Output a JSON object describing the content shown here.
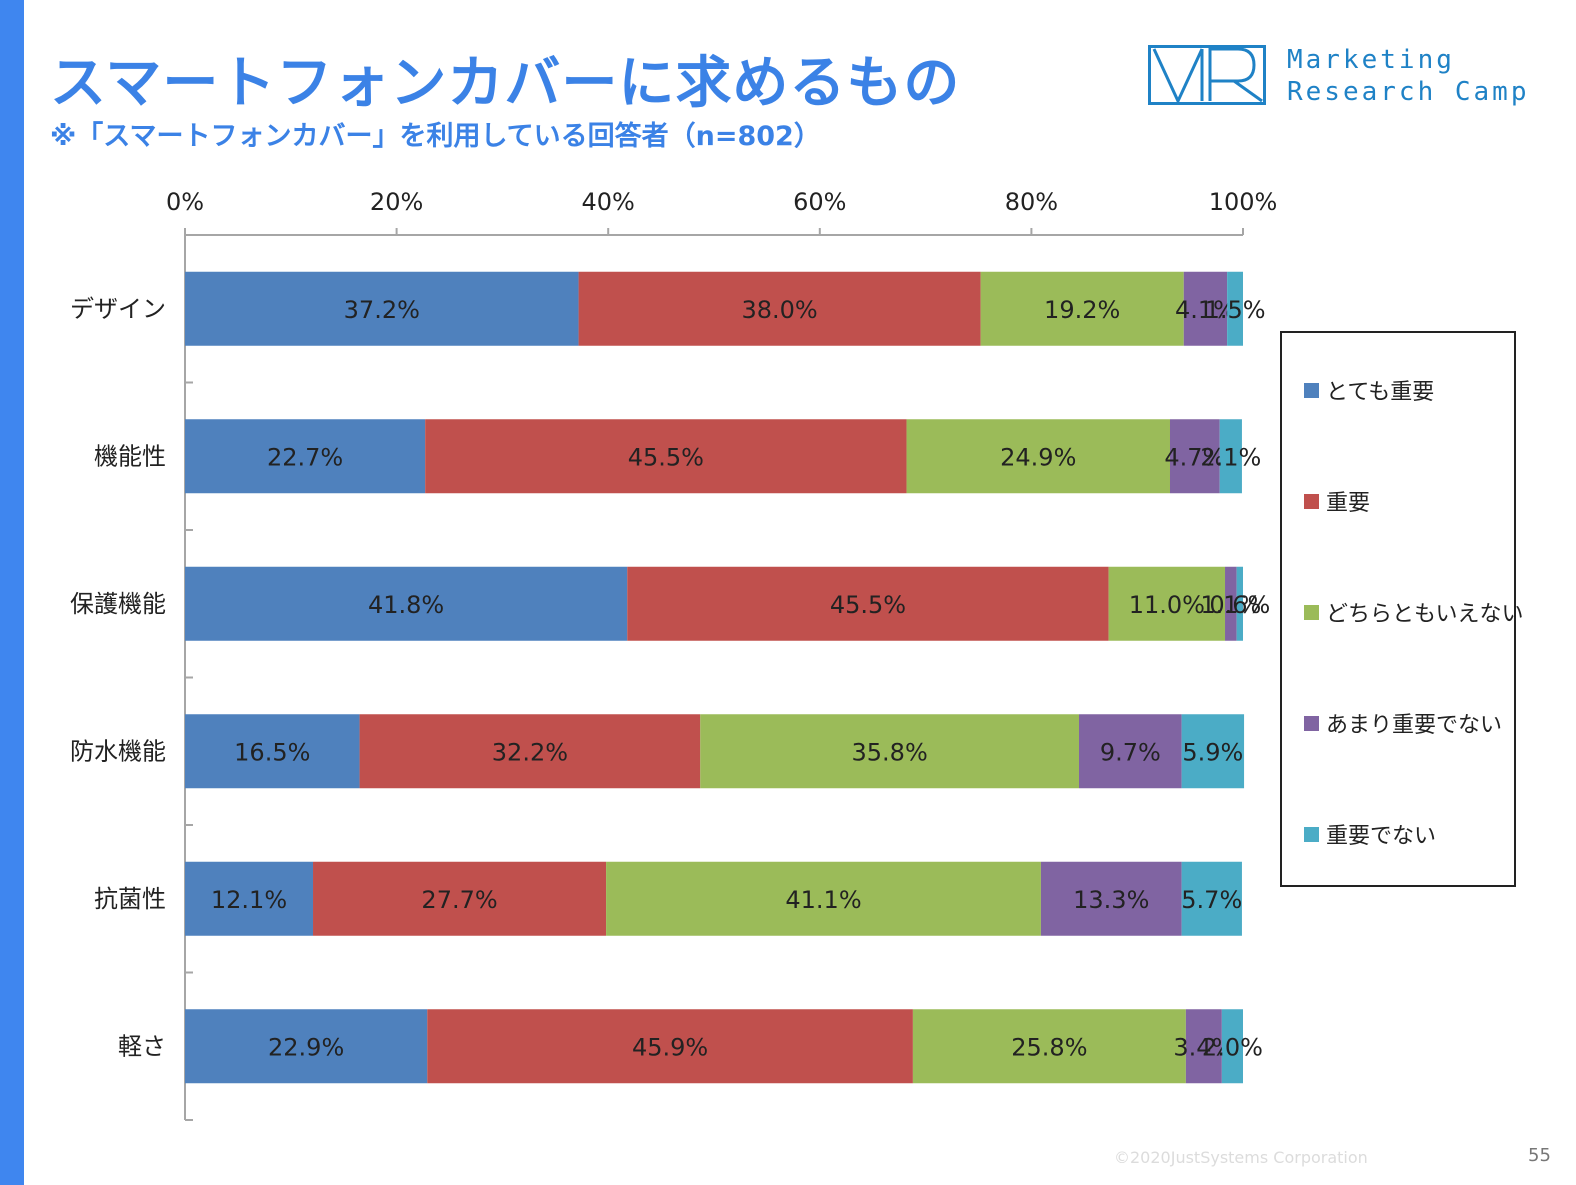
{
  "title": "スマートフォンカバーに求めるもの",
  "subtitle": "※「スマートフォンカバー」を利用している回答者（n=802）",
  "logo": {
    "line1": "Marketing",
    "line2": "Research Camp",
    "color": "#1f82c6"
  },
  "footer": {
    "copyright": "©2020JustSystems Corporation",
    "page_number": "55"
  },
  "chart_data": {
    "type": "bar",
    "orientation": "horizontal",
    "stacked": true,
    "x_ticks": [
      "0%",
      "20%",
      "40%",
      "60%",
      "80%",
      "100%"
    ],
    "xlim": [
      0,
      100
    ],
    "categories": [
      "デザイン",
      "機能性",
      "保護機能",
      "防水機能",
      "抗菌性",
      "軽さ"
    ],
    "series": [
      {
        "name": "とても重要",
        "color": "#4f81bd",
        "values": [
          37.2,
          22.7,
          41.8,
          16.5,
          12.1,
          22.9
        ],
        "labels": [
          "37.2%",
          "22.7%",
          "41.8%",
          "16.5%",
          "12.1%",
          "22.9%"
        ]
      },
      {
        "name": "重要",
        "color": "#c0504d",
        "values": [
          38.0,
          45.5,
          45.5,
          32.2,
          27.7,
          45.9
        ],
        "labels": [
          "38.0%",
          "45.5%",
          "45.5%",
          "32.2%",
          "27.7%",
          "45.9%"
        ]
      },
      {
        "name": "どちらともいえない",
        "color": "#9bbb59",
        "values": [
          19.2,
          24.9,
          11.0,
          35.8,
          41.1,
          25.8
        ],
        "labels": [
          "19.2%",
          "24.9%",
          "11.0%",
          "35.8%",
          "41.1%",
          "25.8%"
        ]
      },
      {
        "name": "あまり重要でない",
        "color": "#8064a2",
        "values": [
          4.1,
          4.7,
          1.1,
          9.7,
          13.3,
          3.4
        ],
        "labels": [
          "4.1%",
          "4.7%",
          "1.1%",
          "9.7%",
          "13.3%",
          "3.4%"
        ]
      },
      {
        "name": "重要でない",
        "color": "#4bacc6",
        "values": [
          1.5,
          2.1,
          0.6,
          5.9,
          5.7,
          2.0
        ],
        "labels": [
          "1.5%",
          "2.1%",
          "0.6%",
          "5.9%",
          "5.7%",
          "2.0%"
        ]
      }
    ],
    "legend_position": "right",
    "grid": false
  }
}
